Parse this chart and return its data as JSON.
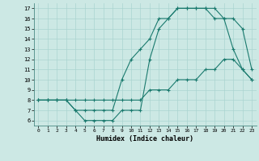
{
  "title": "",
  "xlabel": "Humidex (Indice chaleur)",
  "bg_color": "#cce8e4",
  "grid_color": "#aad4d0",
  "line_color": "#1a7a6e",
  "xlim": [
    -0.5,
    23.5
  ],
  "ylim": [
    5.5,
    17.5
  ],
  "xticks": [
    0,
    1,
    2,
    3,
    4,
    5,
    6,
    7,
    8,
    9,
    10,
    11,
    12,
    13,
    14,
    15,
    16,
    17,
    18,
    19,
    20,
    21,
    22,
    23
  ],
  "yticks": [
    6,
    7,
    8,
    9,
    10,
    11,
    12,
    13,
    14,
    15,
    16,
    17
  ],
  "series": [
    {
      "x": [
        0,
        1,
        2,
        3,
        4,
        5,
        6,
        7,
        8,
        9,
        10,
        11,
        12,
        13,
        14,
        15,
        16,
        17,
        18,
        19,
        20,
        21,
        22,
        23
      ],
      "y": [
        8,
        8,
        8,
        8,
        7,
        6,
        6,
        6,
        6,
        7,
        7,
        7,
        12,
        15,
        16,
        17,
        17,
        17,
        17,
        17,
        16,
        13,
        11,
        10
      ]
    },
    {
      "x": [
        0,
        1,
        2,
        3,
        4,
        5,
        6,
        7,
        8,
        9,
        10,
        11,
        12,
        13,
        14,
        15,
        16,
        17,
        18,
        19,
        20,
        21,
        22,
        23
      ],
      "y": [
        8,
        8,
        8,
        8,
        7,
        7,
        7,
        7,
        7,
        10,
        12,
        13,
        14,
        16,
        16,
        17,
        17,
        17,
        17,
        16,
        16,
        16,
        15,
        11
      ]
    },
    {
      "x": [
        0,
        1,
        2,
        3,
        4,
        5,
        6,
        7,
        8,
        9,
        10,
        11,
        12,
        13,
        14,
        15,
        16,
        17,
        18,
        19,
        20,
        21,
        22,
        23
      ],
      "y": [
        8,
        8,
        8,
        8,
        8,
        8,
        8,
        8,
        8,
        8,
        8,
        8,
        9,
        9,
        9,
        10,
        10,
        10,
        11,
        11,
        12,
        12,
        11,
        10
      ]
    }
  ]
}
